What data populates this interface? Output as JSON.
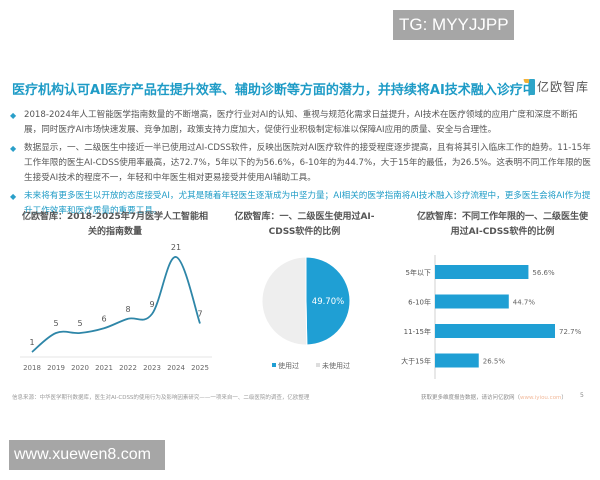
{
  "watermarks": {
    "top_right": "TG: MYYJJPP",
    "bottom_left": "www.xuewen8.com"
  },
  "header": {
    "title": "医疗机构认可AI医疗产品在提升效率、辅助诊断等方面的潜力，并持续将AI技术融入诊疗中",
    "logo_text": "亿欧智库",
    "accent_color": "#1e9bc6"
  },
  "bullets": [
    {
      "text": "2018-2024年人工智能医学指南数量的不断增高，医疗行业对AI的认知、重视与规范化需求日益提升，AI技术在医疗领域的应用广度和深度不断拓展，同时医疗AI市场快速发展、竞争加剧，政策支持力度加大，促使行业积极制定标准以保障AI应用的质量、安全与合理性。",
      "style": "normal"
    },
    {
      "text": "数据显示，一、二级医生中接近一半已使用过AI-CDSS软件，反映出医院对AI医疗软件的接受程度逐步提高，且有将其引入临床工作的趋势。11-15年工作年限的医生AI-CDSS使用率最高，达72.7%，5年以下的为56.6%，6-10年的为44.7%，大于15年的最低，为26.5%。这表明不同工作年限的医生接受AI技术的程度不一，年轻和中年医生相对更易接受并使用AI辅助工具。",
      "style": "normal"
    },
    {
      "text": "未来将有更多医生以开放的态度接受AI，尤其是随着年轻医生逐渐成为中坚力量；AI相关的医学指南将AI技术融入诊疗流程中，更多医生会将AI作为提升工作效率和医疗质量的重要工具。",
      "style": "highlight"
    }
  ],
  "chart_data": [
    {
      "type": "line",
      "title": "亿欧智库：2018-2025年7月医学人工智能相关的指南数量",
      "categories": [
        "2018",
        "2019",
        "2020",
        "2021",
        "2022",
        "2023",
        "2024",
        "2025"
      ],
      "values": [
        1,
        5,
        5,
        6,
        8,
        9,
        21,
        7
      ],
      "xlabel": "",
      "ylabel": "",
      "ylim": [
        0,
        22
      ],
      "grid": false,
      "color": "#2e86a8",
      "data_labels": true
    },
    {
      "type": "pie",
      "title": "亿欧智库：一、二级医生使用过AI-CDSS软件的比例",
      "labels": [
        "使用过",
        "未使用过"
      ],
      "values": [
        49.7,
        50.3
      ],
      "colors": [
        "#1f9fd4",
        "#eeeeee"
      ],
      "data_label": "49.70%",
      "legend_position": "bottom"
    },
    {
      "type": "bar",
      "orientation": "horizontal",
      "title": "亿欧智库：不同工作年限的一、二级医生使用过AI-CDSS软件的比例",
      "categories": [
        "5年以下",
        "6-10年",
        "11-15年",
        "大于15年"
      ],
      "values": [
        56.6,
        44.7,
        72.7,
        26.5
      ],
      "value_labels": [
        "56.6%",
        "44.7%",
        "72.7%",
        "26.5%"
      ],
      "unit": "%",
      "color": "#1f9fd4"
    }
  ],
  "footer": {
    "source": "信息来源：中华医学期刊数据库，医生对AI-CDSS的使用行为及影响因素研究——一项来自一、二级医院的调查，亿欧整理",
    "cta_prefix": "获取更多维度报告数据，请访问亿欧网（",
    "cta_url": "www.iyiou.com",
    "cta_suffix": "）",
    "page_number": "5"
  }
}
